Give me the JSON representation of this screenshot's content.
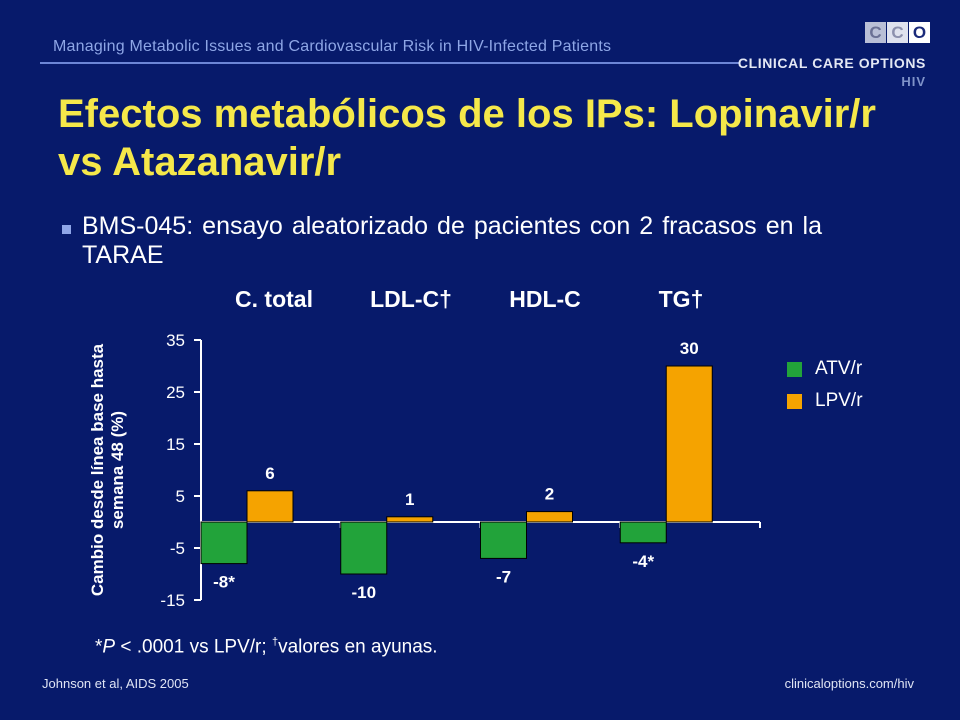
{
  "header": {
    "text": "Managing Metabolic Issues and Cardiovascular Risk in HIV-Infected Patients"
  },
  "logo": {
    "letters": [
      "C",
      "C",
      "O"
    ],
    "line1": "CLINICAL CARE OPTIONS",
    "line2": "HIV"
  },
  "title": "Efectos metabólicos de los IPs: Lopinavir/r vs Atazanavir/r",
  "bullet": "BMS-045: ensayo aleatorizado de pacientes con 2 fracasos en la TARAE",
  "chart_data": {
    "type": "bar",
    "categories": [
      "C. total",
      "LDL-C†",
      "HDL-C",
      "TG†"
    ],
    "series": [
      {
        "name": "ATV/r",
        "color": "#22a33a",
        "values": [
          -8,
          -10,
          -7,
          -4
        ],
        "labels": [
          "-8*",
          "-10",
          "-7",
          "-4*"
        ]
      },
      {
        "name": "LPV/r",
        "color": "#f5a300",
        "values": [
          6,
          1,
          2,
          30
        ],
        "labels": [
          "6",
          "1",
          "2",
          "30"
        ]
      }
    ],
    "ylabel": "Cambio desde línea base hasta semana 48 (%)",
    "yticks": [
      35,
      25,
      15,
      5,
      -5,
      -15
    ],
    "ylim": [
      -15,
      35
    ],
    "legend_position": "right"
  },
  "footnote": {
    "star_symbol": "*",
    "p_letter": "P",
    "text": " < .0001 vs LPV/r; ",
    "dagger": "†",
    "text2": "valores en ayunas."
  },
  "citation": {
    "left": "Johnson et al, AIDS 2005",
    "right": "clinicaloptions.com/hiv"
  }
}
